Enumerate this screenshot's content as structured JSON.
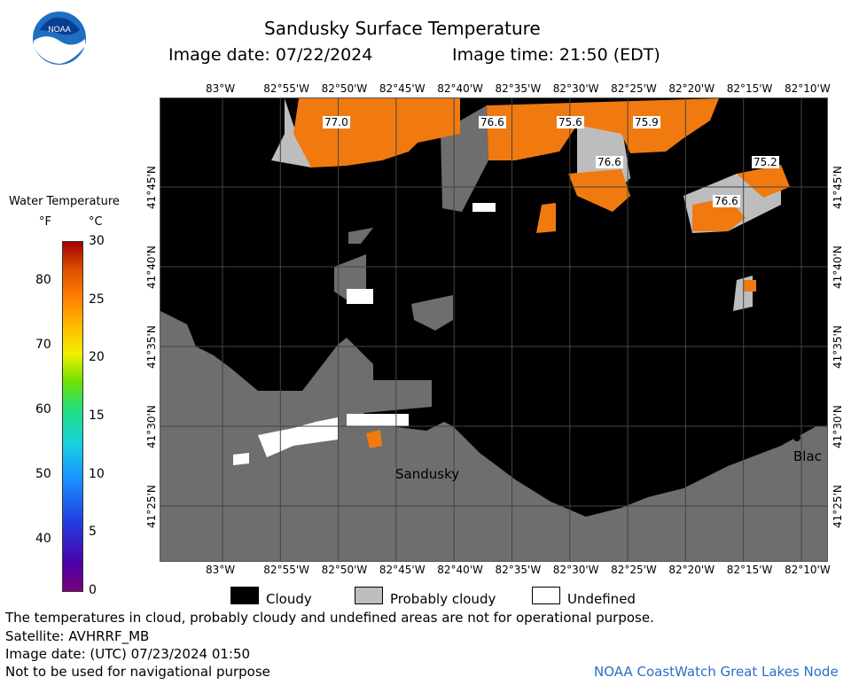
{
  "header": {
    "title": "Sandusky Surface Temperature",
    "image_date": "Image date: 07/22/2024",
    "image_time": "Image time: 21:50 (EDT)",
    "logo_text": "NOAA"
  },
  "colorbar": {
    "title": "Water Temperature",
    "unit_f": "°F",
    "unit_c": "°C",
    "f_ticks": [
      "80",
      "70",
      "60",
      "50",
      "40"
    ],
    "c_ticks": [
      "30",
      "25",
      "20",
      "15",
      "10",
      "5",
      "0"
    ],
    "colors": [
      "#7b007b",
      "#4b00a8",
      "#2040e0",
      "#1a90ff",
      "#19d0e0",
      "#20e080",
      "#70e000",
      "#f0f000",
      "#ffc000",
      "#ff8000",
      "#e05000",
      "#a00000"
    ]
  },
  "map": {
    "lon_labels": [
      "83°W",
      "82°55'W",
      "82°50'W",
      "82°45'W",
      "82°40'W",
      "82°35'W",
      "82°30'W",
      "82°25'W",
      "82°20'W",
      "82°15'W",
      "82°10'W"
    ],
    "lat_labels": [
      "41°45'N",
      "41°40'N",
      "41°35'N",
      "41°30'N",
      "41°25'N"
    ],
    "temperature_labels": [
      {
        "id": "t1",
        "text": "77.0"
      },
      {
        "id": "t2",
        "text": "76.6"
      },
      {
        "id": "t3",
        "text": "75.6"
      },
      {
        "id": "t4",
        "text": "75.9"
      },
      {
        "id": "t5",
        "text": "76.6"
      },
      {
        "id": "t6",
        "text": "75.2"
      },
      {
        "id": "t7",
        "text": "76.6"
      }
    ],
    "place_labels": {
      "sandusky": "Sandusky",
      "east": "Blac"
    },
    "colors": {
      "cloud": "#000000",
      "probably_cloudy": "#bdbdbd",
      "land": "#737373",
      "warm_water": "#f07a10",
      "undefined": "#ffffff"
    }
  },
  "legend": {
    "cloudy": "Cloudy",
    "probably_cloudy": "Probably cloudy",
    "undefined": "Undefined"
  },
  "footer": {
    "disclaimer": "The temperatures in cloud, probably cloudy and undefined areas are not for operational purpose.",
    "satellite": "Satellite: AVHRRF_MB",
    "utc_date": "Image date: (UTC) 07/23/2024  01:50",
    "nav": "Not to be used for navigational purpose",
    "credit": "NOAA CoastWatch Great Lakes Node"
  }
}
